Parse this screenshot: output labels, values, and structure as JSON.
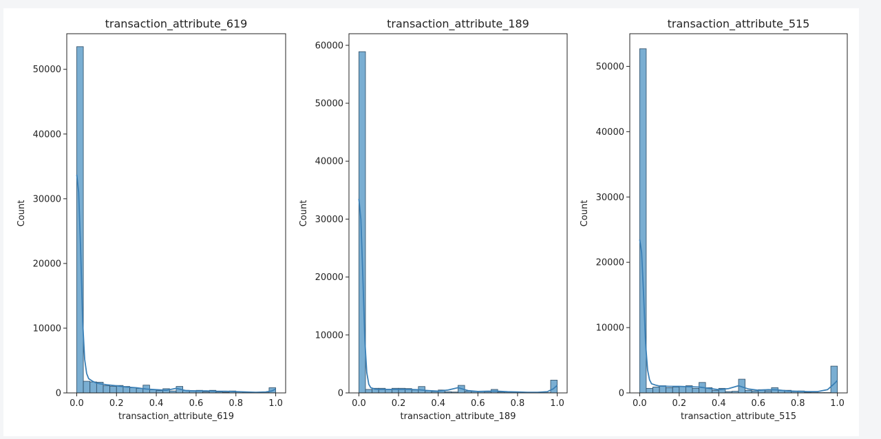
{
  "chart_data": [
    {
      "type": "bar",
      "title": "transaction_attribute_619",
      "xlabel": "transaction_attribute_619",
      "ylabel": "Count",
      "xlim": [
        -0.05,
        1.05
      ],
      "ylim": [
        0,
        55500
      ],
      "xticks": [
        "0.0",
        "0.2",
        "0.4",
        "0.6",
        "0.8",
        "1.0"
      ],
      "yticks": [
        "0",
        "10000",
        "20000",
        "30000",
        "40000",
        "50000"
      ],
      "bin_width": 0.0333,
      "bins": [
        0.0,
        0.0333,
        0.0667,
        0.1,
        0.1333,
        0.1667,
        0.2,
        0.2333,
        0.2667,
        0.3,
        0.3333,
        0.3667,
        0.4,
        0.4333,
        0.4667,
        0.5,
        0.5333,
        0.5667,
        0.6,
        0.6333,
        0.6667,
        0.7,
        0.7333,
        0.7667,
        0.8,
        0.8333,
        0.8667,
        0.9,
        0.9333,
        0.9667
      ],
      "counts": [
        53500,
        1800,
        1700,
        1650,
        1100,
        1000,
        1150,
        1000,
        800,
        700,
        1200,
        500,
        350,
        650,
        300,
        1000,
        400,
        350,
        400,
        150,
        400,
        150,
        100,
        300,
        150,
        100,
        50,
        50,
        50,
        800
      ],
      "kde": {
        "x": [
          0.0,
          0.01,
          0.02,
          0.03,
          0.04,
          0.05,
          0.06,
          0.08,
          0.1,
          0.15,
          0.2,
          0.25,
          0.3,
          0.35,
          0.4,
          0.45,
          0.5,
          0.55,
          0.6,
          0.65,
          0.7,
          0.75,
          0.8,
          0.85,
          0.9,
          0.95,
          0.98,
          1.0
        ],
        "y": [
          33700,
          31000,
          22000,
          11000,
          5200,
          3000,
          2200,
          1800,
          1500,
          1250,
          1100,
          900,
          800,
          600,
          500,
          400,
          700,
          350,
          300,
          320,
          250,
          250,
          200,
          150,
          100,
          150,
          300,
          600
        ]
      }
    },
    {
      "type": "bar",
      "title": "transaction_attribute_189",
      "xlabel": "transaction_attribute_189",
      "ylabel": "Count",
      "xlim": [
        -0.05,
        1.05
      ],
      "ylim": [
        0,
        62000
      ],
      "xticks": [
        "0.0",
        "0.2",
        "0.4",
        "0.6",
        "0.8",
        "1.0"
      ],
      "yticks": [
        "0",
        "10000",
        "20000",
        "30000",
        "40000",
        "50000",
        "60000"
      ],
      "bin_width": 0.0333,
      "bins": [
        0.0,
        0.0333,
        0.0667,
        0.1,
        0.1333,
        0.1667,
        0.2,
        0.2333,
        0.2667,
        0.3,
        0.3333,
        0.3667,
        0.4,
        0.4333,
        0.4667,
        0.5,
        0.5333,
        0.5667,
        0.6,
        0.6333,
        0.6667,
        0.7,
        0.7333,
        0.7667,
        0.8,
        0.8333,
        0.8667,
        0.9,
        0.9333,
        0.9667
      ],
      "counts": [
        58900,
        600,
        800,
        800,
        650,
        800,
        800,
        750,
        500,
        1100,
        350,
        250,
        500,
        200,
        150,
        1300,
        300,
        250,
        300,
        200,
        600,
        150,
        150,
        150,
        100,
        50,
        50,
        50,
        50,
        2200
      ],
      "kde": {
        "x": [
          0.0,
          0.01,
          0.02,
          0.03,
          0.04,
          0.05,
          0.06,
          0.08,
          0.1,
          0.15,
          0.2,
          0.25,
          0.3,
          0.35,
          0.4,
          0.45,
          0.5,
          0.55,
          0.6,
          0.65,
          0.7,
          0.75,
          0.8,
          0.85,
          0.9,
          0.95,
          0.98,
          1.0
        ],
        "y": [
          33500,
          30000,
          20000,
          9000,
          3500,
          1500,
          900,
          650,
          600,
          600,
          600,
          600,
          550,
          400,
          300,
          500,
          900,
          400,
          250,
          300,
          300,
          200,
          150,
          100,
          100,
          200,
          700,
          1300
        ]
      }
    },
    {
      "type": "bar",
      "title": "transaction_attribute_515",
      "xlabel": "transaction_attribute_515",
      "ylabel": "Count",
      "xlim": [
        -0.05,
        1.05
      ],
      "ylim": [
        0,
        55000
      ],
      "xticks": [
        "0.0",
        "0.2",
        "0.4",
        "0.6",
        "0.8",
        "1.0"
      ],
      "yticks": [
        "0",
        "10000",
        "20000",
        "30000",
        "40000",
        "50000"
      ],
      "bin_width": 0.0333,
      "bins": [
        0.0,
        0.0333,
        0.0667,
        0.1,
        0.1333,
        0.1667,
        0.2,
        0.2333,
        0.2667,
        0.3,
        0.3333,
        0.3667,
        0.4,
        0.4333,
        0.4667,
        0.5,
        0.5333,
        0.5667,
        0.6,
        0.6333,
        0.6667,
        0.7,
        0.7333,
        0.7667,
        0.8,
        0.8333,
        0.8667,
        0.9,
        0.9333,
        0.9667
      ],
      "counts": [
        52700,
        700,
        900,
        1100,
        800,
        900,
        1000,
        1100,
        700,
        1600,
        800,
        400,
        700,
        200,
        250,
        2100,
        400,
        300,
        500,
        300,
        800,
        400,
        400,
        200,
        300,
        100,
        50,
        50,
        50,
        4100
      ],
      "kde": {
        "x": [
          0.0,
          0.01,
          0.02,
          0.03,
          0.04,
          0.05,
          0.06,
          0.08,
          0.1,
          0.15,
          0.2,
          0.25,
          0.3,
          0.35,
          0.4,
          0.45,
          0.5,
          0.55,
          0.6,
          0.65,
          0.7,
          0.75,
          0.8,
          0.85,
          0.9,
          0.95,
          0.98,
          1.0
        ],
        "y": [
          23500,
          21500,
          15000,
          7500,
          3500,
          2000,
          1400,
          1200,
          1050,
          1000,
          1000,
          950,
          900,
          700,
          500,
          650,
          1100,
          600,
          400,
          500,
          450,
          300,
          250,
          200,
          200,
          500,
          1300,
          1900
        ]
      }
    }
  ]
}
